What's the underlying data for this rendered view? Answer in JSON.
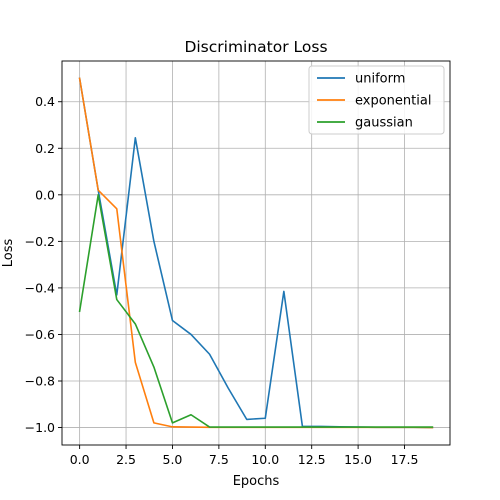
{
  "chart_data": {
    "type": "line",
    "title": "Discriminator Loss",
    "xlabel": "Epochs",
    "ylabel": "Loss",
    "xlim": [
      -0.95,
      19.95
    ],
    "ylim": [
      -1.075,
      0.575
    ],
    "xticks": [
      0.0,
      2.5,
      5.0,
      7.5,
      10.0,
      12.5,
      15.0,
      17.5
    ],
    "xtick_labels": [
      "0.0",
      "2.5",
      "5.0",
      "7.5",
      "10.0",
      "12.5",
      "15.0",
      "17.5"
    ],
    "yticks": [
      0.4,
      0.2,
      0.0,
      -0.2,
      -0.4,
      -0.6,
      -0.8,
      -1.0
    ],
    "ytick_labels": [
      "0.4",
      "0.2",
      "0.0",
      "−0.2",
      "−0.4",
      "−0.6",
      "−0.8",
      "−1.0"
    ],
    "grid": true,
    "legend_position": "top-right",
    "x": [
      0,
      1,
      2,
      3,
      4,
      5,
      6,
      7,
      8,
      9,
      10,
      11,
      12,
      13,
      14,
      15,
      16,
      17,
      18,
      19
    ],
    "series": [
      {
        "name": "uniform",
        "color": "#1f77b4",
        "values": [
          0.5,
          0.02,
          -0.43,
          0.245,
          -0.2,
          -0.54,
          -0.6,
          -0.685,
          -0.83,
          -0.965,
          -0.96,
          -0.415,
          -0.995,
          -0.995,
          -0.997,
          -0.998,
          -0.999,
          -0.999,
          -0.999,
          -1.0
        ]
      },
      {
        "name": "exponential",
        "color": "#ff7f0e",
        "values": [
          0.5,
          0.02,
          -0.06,
          -0.72,
          -0.98,
          -0.997,
          -0.998,
          -0.999,
          -0.999,
          -0.999,
          -0.999,
          -0.999,
          -0.999,
          -0.999,
          -0.999,
          -0.999,
          -0.999,
          -0.999,
          -0.999,
          -1.0
        ]
      },
      {
        "name": "gaussian",
        "color": "#2ca02c",
        "values": [
          -0.5,
          0.0,
          -0.45,
          -0.555,
          -0.74,
          -0.98,
          -0.945,
          -0.998,
          -0.998,
          -0.998,
          -0.998,
          -0.998,
          -0.998,
          -0.998,
          -0.998,
          -0.998,
          -0.998,
          -0.998,
          -0.998,
          -0.998
        ]
      }
    ]
  }
}
